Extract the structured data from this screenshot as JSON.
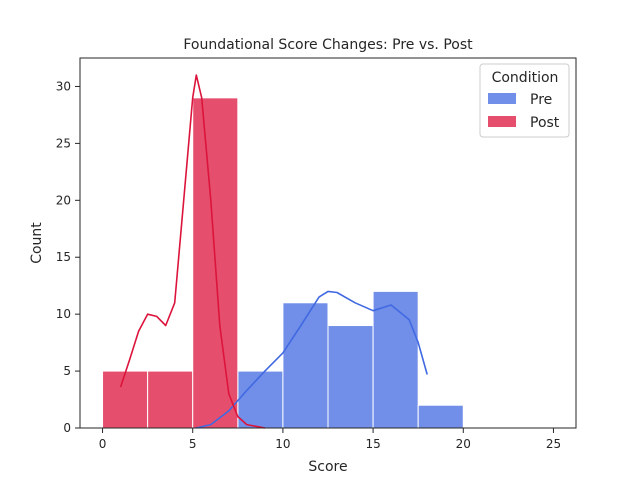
{
  "chart_data": {
    "type": "histogram",
    "title": "Foundational Score Changes: Pre vs. Post",
    "xlabel": "Score",
    "ylabel": "Count",
    "xlim": [
      -1.25,
      26.25
    ],
    "ylim": [
      0,
      32.5
    ],
    "xticks": [
      0,
      5,
      10,
      15,
      20,
      25
    ],
    "yticks": [
      0,
      5,
      10,
      15,
      20,
      25,
      30
    ],
    "grid": false,
    "legend": {
      "title": "Condition",
      "placement": "top-right"
    },
    "series": [
      {
        "name": "Pre",
        "color": "#4169e1",
        "bins": [
          {
            "x0": 7.5,
            "x1": 10,
            "count": 5
          },
          {
            "x0": 10,
            "x1": 12.5,
            "count": 11
          },
          {
            "x0": 12.5,
            "x1": 15,
            "count": 9
          },
          {
            "x0": 15,
            "x1": 17.5,
            "count": 12
          },
          {
            "x0": 17.5,
            "x1": 20,
            "count": 2
          }
        ],
        "kde": [
          [
            5.2,
            0
          ],
          [
            6,
            0.3
          ],
          [
            7,
            1.5
          ],
          [
            8,
            3.3
          ],
          [
            9,
            5.0
          ],
          [
            10,
            6.6
          ],
          [
            11,
            9.0
          ],
          [
            12,
            11.5
          ],
          [
            12.5,
            12.0
          ],
          [
            13,
            11.9
          ],
          [
            14,
            11.0
          ],
          [
            15,
            10.3
          ],
          [
            16,
            10.8
          ],
          [
            17,
            9.5
          ],
          [
            17.5,
            7.5
          ],
          [
            18,
            4.7
          ]
        ]
      },
      {
        "name": "Post",
        "color": "#dc143c",
        "bins": [
          {
            "x0": 0,
            "x1": 2.5,
            "count": 5
          },
          {
            "x0": 2.5,
            "x1": 5,
            "count": 5
          },
          {
            "x0": 5,
            "x1": 7.5,
            "count": 29
          }
        ],
        "kde": [
          [
            1,
            3.6
          ],
          [
            1.5,
            6.0
          ],
          [
            2,
            8.5
          ],
          [
            2.5,
            10.0
          ],
          [
            3,
            9.8
          ],
          [
            3.5,
            9.0
          ],
          [
            4,
            11.0
          ],
          [
            4.5,
            20.0
          ],
          [
            5,
            29.0
          ],
          [
            5.2,
            31.0
          ],
          [
            5.5,
            29.0
          ],
          [
            6,
            20.0
          ],
          [
            6.5,
            9.0
          ],
          [
            7,
            3.0
          ],
          [
            7.5,
            1.0
          ],
          [
            8,
            0.3
          ],
          [
            9,
            0
          ]
        ]
      }
    ]
  }
}
